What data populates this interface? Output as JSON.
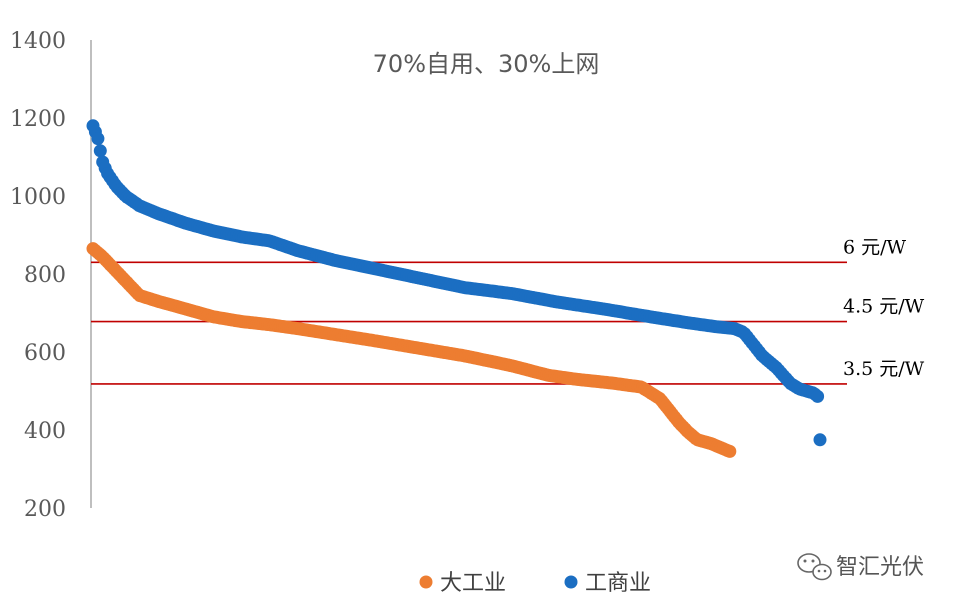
{
  "chart_data": {
    "type": "scatter",
    "title": "70%自用、30%上网",
    "xlabel": "",
    "ylabel": "",
    "ylim": [
      200,
      1400
    ],
    "yticks": [
      200,
      400,
      600,
      800,
      1000,
      1200,
      1400
    ],
    "grid": false,
    "legend": "bottom",
    "point_count": 300,
    "series": [
      {
        "name": "大工业",
        "color": "#ED7D31",
        "anchors": [
          [
            0,
            865
          ],
          [
            10,
            845
          ],
          [
            20,
            820
          ],
          [
            30,
            795
          ],
          [
            40,
            770
          ],
          [
            50,
            745
          ],
          [
            70,
            730
          ],
          [
            100,
            710
          ],
          [
            130,
            690
          ],
          [
            160,
            678
          ],
          [
            190,
            670
          ],
          [
            220,
            660
          ],
          [
            260,
            645
          ],
          [
            300,
            630
          ],
          [
            350,
            610
          ],
          [
            400,
            590
          ],
          [
            450,
            565
          ],
          [
            490,
            540
          ],
          [
            520,
            530
          ],
          [
            560,
            520
          ],
          [
            590,
            510
          ],
          [
            610,
            480
          ],
          [
            620,
            450
          ],
          [
            630,
            420
          ],
          [
            640,
            395
          ],
          [
            650,
            375
          ],
          [
            665,
            365
          ],
          [
            680,
            350
          ],
          [
            685,
            345
          ]
        ]
      },
      {
        "name": "工商业",
        "color": "#1B6EC2",
        "anchors": [
          [
            0,
            1180
          ],
          [
            5,
            1150
          ],
          [
            10,
            1090
          ],
          [
            15,
            1060
          ],
          [
            25,
            1025
          ],
          [
            35,
            1000
          ],
          [
            50,
            975
          ],
          [
            70,
            955
          ],
          [
            100,
            930
          ],
          [
            130,
            910
          ],
          [
            160,
            895
          ],
          [
            190,
            885
          ],
          [
            220,
            860
          ],
          [
            260,
            835
          ],
          [
            300,
            815
          ],
          [
            350,
            790
          ],
          [
            400,
            765
          ],
          [
            450,
            750
          ],
          [
            500,
            728
          ],
          [
            550,
            710
          ],
          [
            600,
            690
          ],
          [
            640,
            675
          ],
          [
            670,
            665
          ],
          [
            690,
            660
          ],
          [
            700,
            650
          ],
          [
            710,
            620
          ],
          [
            720,
            590
          ],
          [
            735,
            560
          ],
          [
            750,
            520
          ],
          [
            760,
            505
          ],
          [
            775,
            495
          ],
          [
            780,
            485
          ],
          [
            782,
            375
          ]
        ]
      }
    ],
    "reference_lines": [
      {
        "label": "6 元/W",
        "y": 830,
        "color": "#C00000"
      },
      {
        "label": "4.5 元/W",
        "y": 678,
        "color": "#C00000"
      },
      {
        "label": "3.5 元/W",
        "y": 518,
        "color": "#C00000"
      }
    ]
  },
  "watermark": {
    "text": "智汇光伏",
    "icon": "wechat-icon"
  }
}
